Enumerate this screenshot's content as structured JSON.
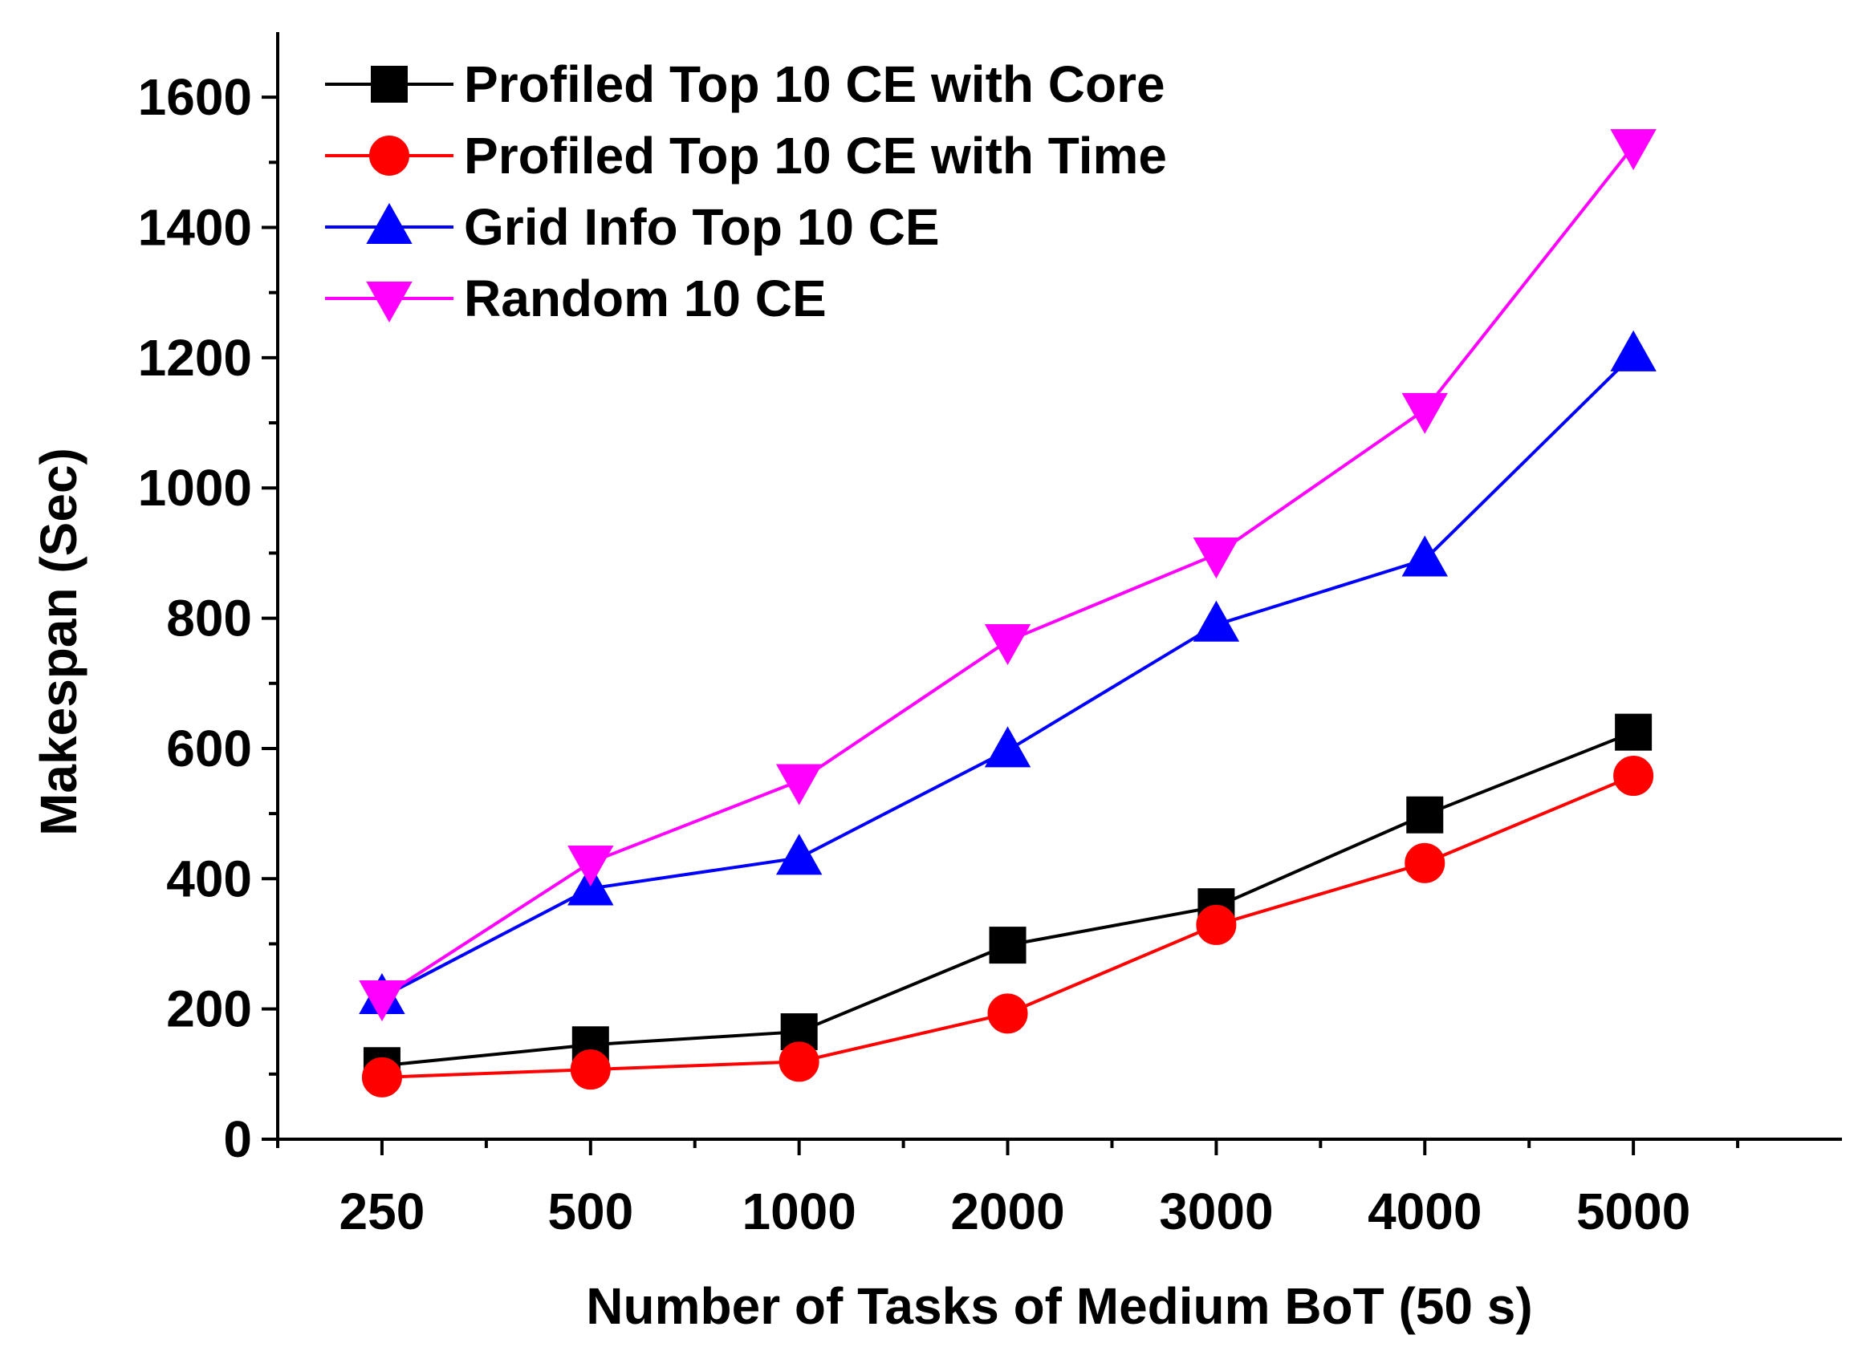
{
  "chart_data": {
    "type": "line",
    "title": "",
    "xlabel": "Number of Tasks of Medium BoT (50 s)",
    "ylabel": "Makespan (Sec)",
    "categories": [
      "250",
      "500",
      "1000",
      "2000",
      "3000",
      "4000",
      "5000"
    ],
    "ylim": [
      0,
      1700
    ],
    "yticks": [
      0,
      200,
      400,
      600,
      800,
      1000,
      1200,
      1400,
      1600
    ],
    "ytick_labels": [
      "0",
      "200",
      "400",
      "600",
      "800",
      "1000",
      "1200",
      "1400",
      "1600"
    ],
    "legend_position": "top-left",
    "grid": false,
    "series": [
      {
        "name": "Profiled Top 10 CE with Core",
        "color": "#000000",
        "marker": "square",
        "values": [
          113,
          145,
          165,
          298,
          357,
          498,
          625
        ]
      },
      {
        "name": "Profiled Top 10 CE with Time",
        "color": "#ff0000",
        "marker": "circle",
        "values": [
          95,
          107,
          119,
          193,
          329,
          424,
          558
        ]
      },
      {
        "name": "Grid Info Top 10 CE",
        "color": "#0000ff",
        "marker": "triangle-up",
        "values": [
          218,
          385,
          432,
          597,
          790,
          890,
          1205
        ]
      },
      {
        "name": "Random 10 CE",
        "color": "#ff00ff",
        "marker": "triangle-down",
        "values": [
          218,
          425,
          550,
          765,
          898,
          1120,
          1525
        ]
      }
    ]
  }
}
